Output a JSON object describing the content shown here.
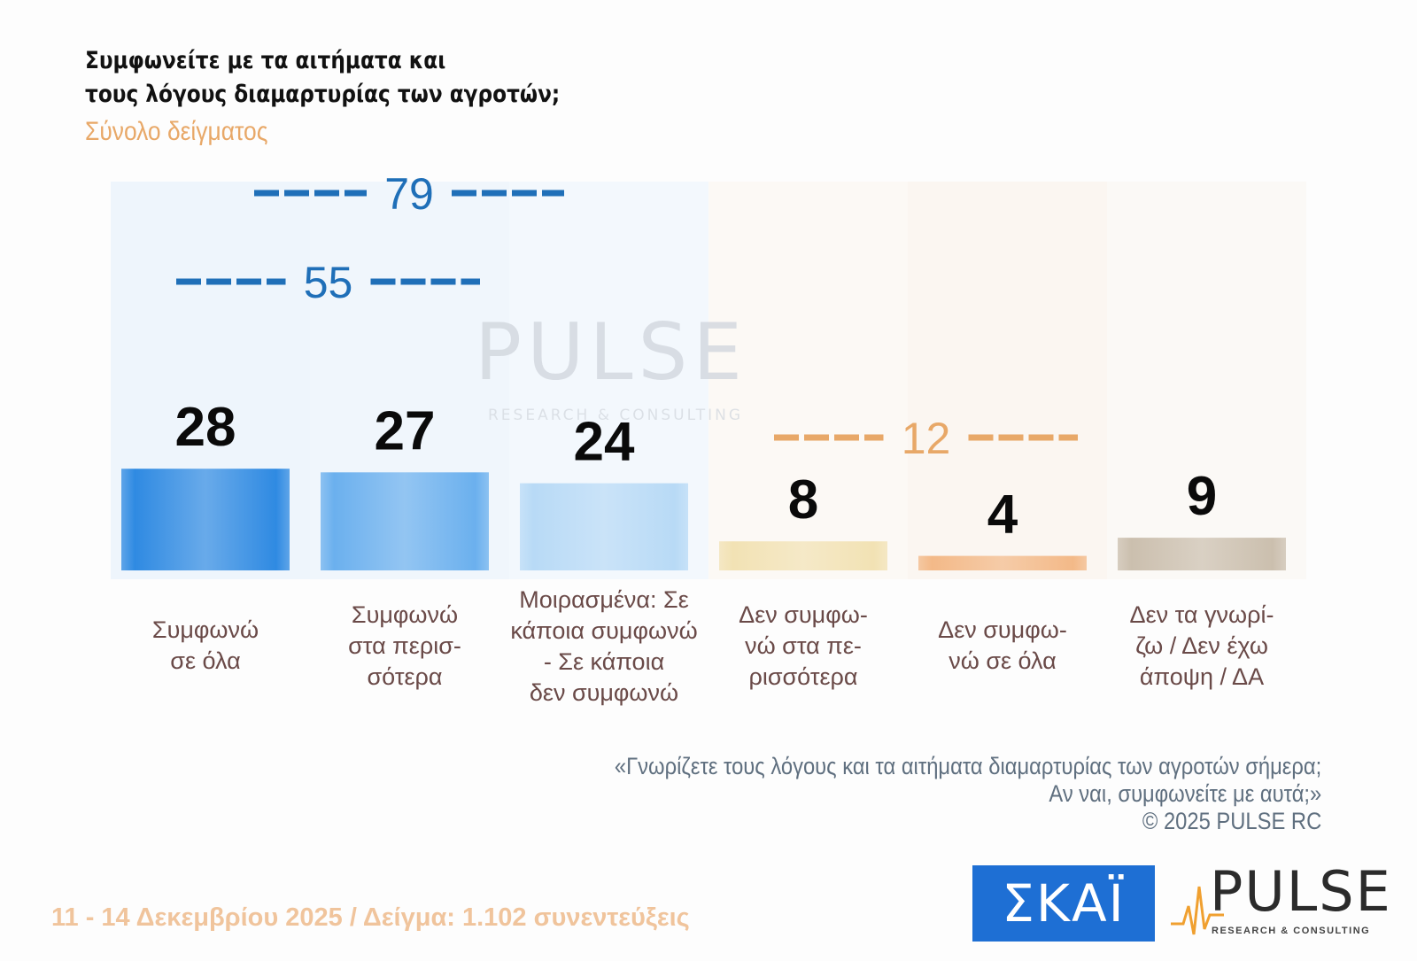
{
  "title_lines": [
    "Συμφωνείτε με τα αιτήματα και",
    "τους λόγους διαμαρτυρίας των αγροτών;"
  ],
  "subtitle": "Σύνολο δείγματος",
  "chart_data": {
    "type": "bar",
    "categories": [
      [
        "Συμφωνώ",
        "σε όλα"
      ],
      [
        "Συμφωνώ",
        "στα περισ-",
        "σότερα"
      ],
      [
        "Μοιρασμένα: Σε",
        "κάποια συμφωνώ",
        "- Σε κάποια",
        "δεν συμφωνώ"
      ],
      [
        "Δεν συμφω-",
        "νώ στα πε-",
        "ρισσότερα"
      ],
      [
        "Δεν συμφω-",
        "νώ σε όλα"
      ],
      [
        "Δεν τα γνωρί-",
        "ζω / Δεν έχω",
        "άποψη / ΔΑ"
      ]
    ],
    "values": [
      28,
      27,
      24,
      8,
      4,
      9
    ],
    "value_labels": [
      "28",
      "27",
      "24",
      "8",
      "4",
      "9"
    ],
    "unit": "%",
    "ylim": [
      0,
      30
    ],
    "bar_colors": [
      "#2f8ae2",
      "#6bb0ee",
      "#b8daf6",
      "#f2e2b4",
      "#f3b988",
      "#cbbfae"
    ],
    "aggregates": [
      {
        "label": "55",
        "value": 55,
        "categories": [
          0,
          1
        ],
        "color": "#1f6fb8"
      },
      {
        "label": "79",
        "value": 79,
        "categories": [
          0,
          1,
          2
        ],
        "color": "#1f6fb8"
      },
      {
        "label": "12",
        "value": 12,
        "categories": [
          3,
          4
        ],
        "color": "#e8a868"
      }
    ]
  },
  "watermark": {
    "word": "PULSE",
    "sub": "RESEARCH & CONSULTING"
  },
  "note_lines": [
    "«Γνωρίζετε τους λόγους και τα αιτήματα διαμαρτυρίας των αγροτών σήμερα;",
    "Αν ναι, συμφωνείτε με αυτά;»",
    "©  2025  PULSE RC"
  ],
  "footer": "11 - 14 Δεκεμβρίου 2025  /  Δείγμα:  1.102 συνεντεύξεις",
  "logos": {
    "skai": "ΣΚΑΪ",
    "pulse_word": "PULSE",
    "pulse_sub": "RESEARCH & CONSULTING"
  },
  "colors": {
    "blue_accent": "#1f6fb8",
    "orange_accent": "#e8a868",
    "skai_blue": "#1e6fd4"
  }
}
